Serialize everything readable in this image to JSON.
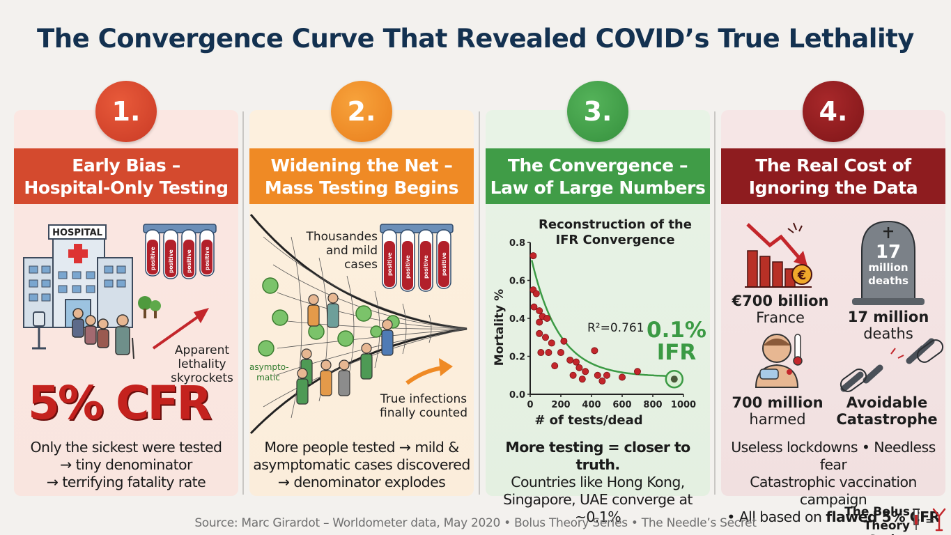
{
  "title": "The Convergence Curve That Revealed COVID’s True Lethality",
  "panels": [
    {
      "number": "1.",
      "heading_line1": "Early Bias –",
      "heading_line2": "Hospital-Only Testing",
      "hospital_sign": "HOSPITAL",
      "tube_label": "positive",
      "annotation": [
        "Apparent",
        "lethality",
        "skyrockets"
      ],
      "big_stat": "5% CFR",
      "caption": [
        "Only the sickest were tested",
        "→ tiny denominator",
        "→ terrifying fatality rate"
      ]
    },
    {
      "number": "2.",
      "heading_line1": "Widening the Net –",
      "heading_line2": "Mass Testing Begins",
      "tube_label": "positive",
      "annotation_top": [
        "Thousandes",
        "and mild",
        "cases"
      ],
      "annotation_left": [
        "asympto-",
        "matic"
      ],
      "annotation_bottom": [
        "True infections",
        "finally counted"
      ],
      "caption": [
        "More people tested → mild &",
        "asymptomatic cases discovered",
        "→ denominator explodes"
      ]
    },
    {
      "number": "3.",
      "heading_line1": "The Convergence –",
      "heading_line2": "Law of Large Numbers",
      "caption_bold": "More testing = closer to truth.",
      "caption": [
        "Countries like Hong Kong,",
        "Singapore, UAE converge at ~0.1%"
      ]
    },
    {
      "number": "4.",
      "heading_line1": "The Real Cost of",
      "heading_line2": "Ignoring the Data",
      "items": [
        {
          "value": "€700 billion",
          "label": "France"
        },
        {
          "value": "17 million",
          "label": "deaths"
        },
        {
          "value": "700 million",
          "label": "harmed"
        },
        {
          "value": "Avoidable",
          "label": "Catastrophe"
        }
      ],
      "tombstone": [
        "17",
        "million",
        "deaths"
      ],
      "euro_symbol": "€",
      "caption": [
        "Useless lockdowns • Needless fear",
        "Catastrophic vaccination campaign"
      ],
      "caption_prefix": "• All based on ",
      "caption_bold": "flawed 5% CFR"
    }
  ],
  "chart_data": {
    "type": "scatter",
    "title": [
      "Reconstruction of the",
      "IFR Convergence"
    ],
    "xlabel": "# of tests/dead",
    "ylabel": "Mortality %",
    "xlim": [
      0,
      1000
    ],
    "ylim": [
      0,
      0.8
    ],
    "xticks": [
      "0",
      "200",
      "400",
      "600",
      "800",
      "1000"
    ],
    "yticks": [
      "0.0",
      "0.2",
      "0.4",
      "0.6",
      "0.8"
    ],
    "r2_label": "R²=0.761",
    "highlight": {
      "value": "0.1%",
      "label": "IFR",
      "x": 940,
      "y": 0.08
    },
    "points": [
      [
        20,
        0.73
      ],
      [
        20,
        0.55
      ],
      [
        40,
        0.53
      ],
      [
        25,
        0.46
      ],
      [
        60,
        0.44
      ],
      [
        80,
        0.41
      ],
      [
        60,
        0.38
      ],
      [
        110,
        0.4
      ],
      [
        60,
        0.32
      ],
      [
        100,
        0.3
      ],
      [
        140,
        0.27
      ],
      [
        120,
        0.22
      ],
      [
        70,
        0.22
      ],
      [
        200,
        0.22
      ],
      [
        220,
        0.28
      ],
      [
        260,
        0.18
      ],
      [
        160,
        0.15
      ],
      [
        300,
        0.17
      ],
      [
        280,
        0.1
      ],
      [
        320,
        0.14
      ],
      [
        340,
        0.08
      ],
      [
        360,
        0.12
      ],
      [
        420,
        0.23
      ],
      [
        440,
        0.1
      ],
      [
        470,
        0.07
      ],
      [
        500,
        0.1
      ],
      [
        600,
        0.09
      ],
      [
        700,
        0.12
      ]
    ],
    "curve_a": 0.092,
    "curve_b": 0.045,
    "curve_c": 0.65,
    "accent": "#3b9a44",
    "point_color": "#c3262b"
  },
  "source": "Source: Marc Girardot – Worldometer data, May 2020 • Bolus Theory Series • The Needle’s Secret",
  "brand": [
    "The Bolus",
    "Theory Series"
  ],
  "brand_mark": "=",
  "colors": {
    "title": "#133150",
    "panel1": "#d5452d",
    "panel2": "#ed8a22",
    "panel3": "#3f9a45",
    "panel4": "#8e1c1f"
  }
}
